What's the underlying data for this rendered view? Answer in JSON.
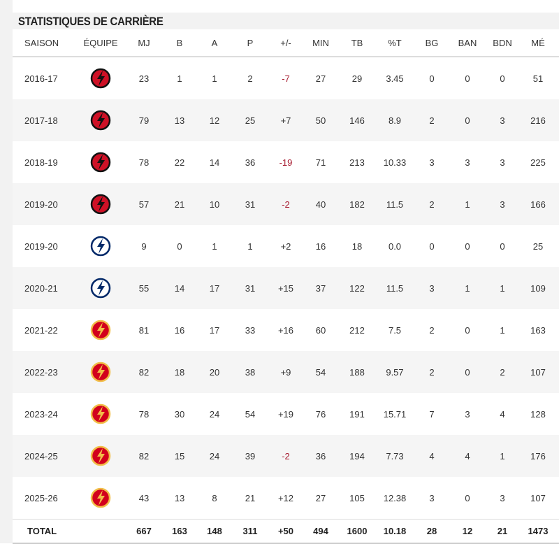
{
  "title": "STATISTIQUES DE CARRIÈRE",
  "table": {
    "columns": [
      "SAISON",
      "ÉQUIPE",
      "MJ",
      "B",
      "A",
      "P",
      "+/-",
      "MIN",
      "TB",
      "%T",
      "BG",
      "BAN",
      "BDN",
      "MÉ"
    ],
    "negative_color": "#a6192e",
    "rows": [
      {
        "season": "2016-17",
        "logo_colors": [
          "#ce1126",
          "#111111"
        ],
        "cells": [
          "23",
          "1",
          "1",
          "2",
          "-7",
          "27",
          "29",
          "3.45",
          "0",
          "0",
          "0",
          "51"
        ]
      },
      {
        "season": "2017-18",
        "logo_colors": [
          "#ce1126",
          "#111111"
        ],
        "cells": [
          "79",
          "13",
          "12",
          "25",
          "+7",
          "50",
          "146",
          "8.9",
          "2",
          "0",
          "3",
          "216"
        ]
      },
      {
        "season": "2018-19",
        "logo_colors": [
          "#ce1126",
          "#111111"
        ],
        "cells": [
          "78",
          "22",
          "14",
          "36",
          "-19",
          "71",
          "213",
          "10.33",
          "3",
          "3",
          "3",
          "225"
        ]
      },
      {
        "season": "2019-20",
        "logo_colors": [
          "#ce1126",
          "#111111"
        ],
        "cells": [
          "57",
          "21",
          "10",
          "31",
          "-2",
          "40",
          "182",
          "11.5",
          "2",
          "1",
          "3",
          "166"
        ]
      },
      {
        "season": "2019-20",
        "logo_colors": [
          "#ffffff",
          "#002868"
        ],
        "cells": [
          "9",
          "0",
          "1",
          "1",
          "+2",
          "16",
          "18",
          "0.0",
          "0",
          "0",
          "0",
          "25"
        ]
      },
      {
        "season": "2020-21",
        "logo_colors": [
          "#ffffff",
          "#002868"
        ],
        "cells": [
          "55",
          "14",
          "17",
          "31",
          "+15",
          "37",
          "122",
          "11.5",
          "3",
          "1",
          "1",
          "109"
        ]
      },
      {
        "season": "2021-22",
        "logo_colors": [
          "#d2001c",
          "#f1be48"
        ],
        "cells": [
          "81",
          "16",
          "17",
          "33",
          "+16",
          "60",
          "212",
          "7.5",
          "2",
          "0",
          "1",
          "163"
        ]
      },
      {
        "season": "2022-23",
        "logo_colors": [
          "#d2001c",
          "#f1be48"
        ],
        "cells": [
          "82",
          "18",
          "20",
          "38",
          "+9",
          "54",
          "188",
          "9.57",
          "2",
          "0",
          "2",
          "107"
        ]
      },
      {
        "season": "2023-24",
        "logo_colors": [
          "#d2001c",
          "#f1be48"
        ],
        "cells": [
          "78",
          "30",
          "24",
          "54",
          "+19",
          "76",
          "191",
          "15.71",
          "7",
          "3",
          "4",
          "128"
        ]
      },
      {
        "season": "2024-25",
        "logo_colors": [
          "#d2001c",
          "#f1be48"
        ],
        "cells": [
          "82",
          "15",
          "24",
          "39",
          "-2",
          "36",
          "194",
          "7.73",
          "4",
          "4",
          "1",
          "176"
        ]
      },
      {
        "season": "2025-26",
        "logo_colors": [
          "#d2001c",
          "#f1be48"
        ],
        "cells": [
          "43",
          "13",
          "8",
          "21",
          "+12",
          "27",
          "105",
          "12.38",
          "3",
          "0",
          "3",
          "107"
        ]
      }
    ],
    "total": {
      "label": "TOTAL",
      "cells": [
        "667",
        "163",
        "148",
        "311",
        "+50",
        "494",
        "1600",
        "10.18",
        "28",
        "12",
        "21",
        "1473"
      ]
    }
  }
}
